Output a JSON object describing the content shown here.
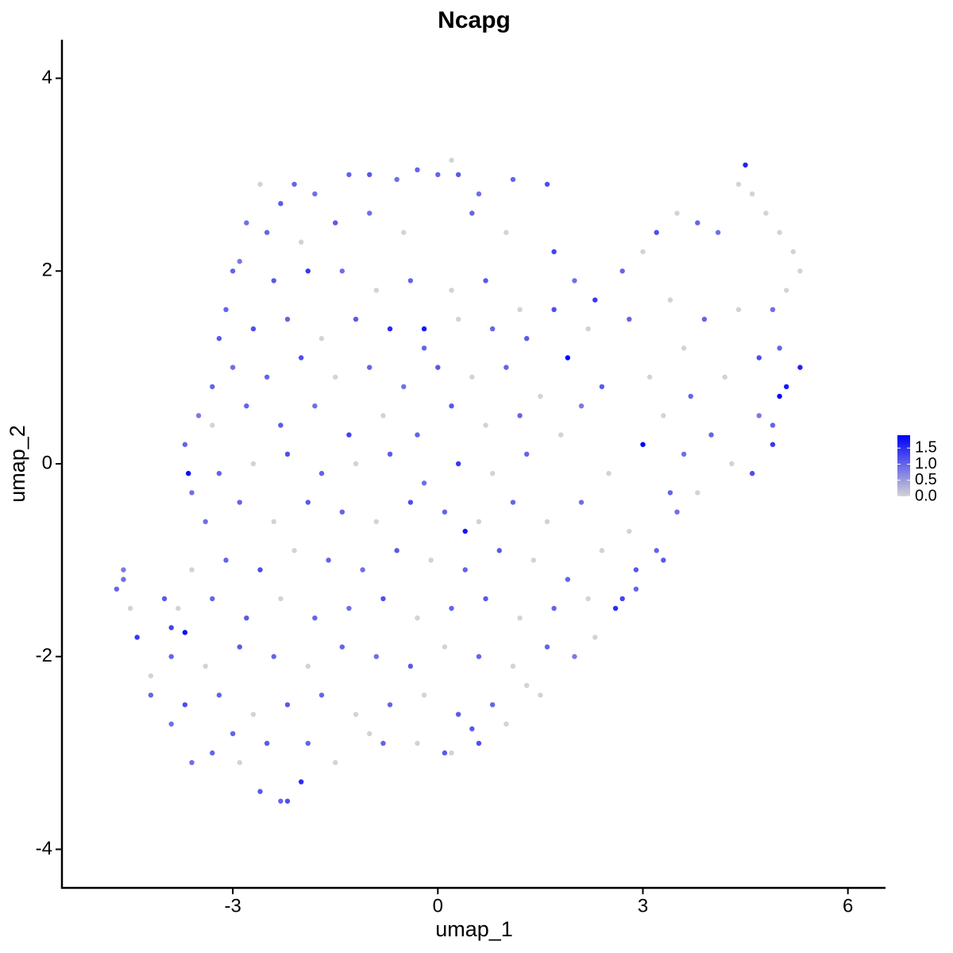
{
  "chart_data": {
    "type": "scatter",
    "title": "Ncapg",
    "x_label": "umap_1",
    "y_label": "umap_2",
    "xlim": [
      -5.5,
      6.55
    ],
    "ylim": [
      -4.4,
      4.4
    ],
    "xticks": [
      -3,
      0,
      3,
      6
    ],
    "yticks": [
      -4,
      -2,
      0,
      2,
      4
    ],
    "colorlim": [
      0,
      1.9
    ],
    "colorbar_ticks": [
      {
        "value": 0,
        "label": "0.0"
      },
      0.5,
      {
        "value": 1,
        "label": "1.0"
      },
      1.5
    ],
    "low_color": "#d3d3d3",
    "high_color": "#0000ff",
    "x": [
      -4.7,
      -4.6,
      -4.6,
      -4.5,
      -4.4,
      -4.2,
      -4.0,
      -3.9,
      -3.7,
      -3.65,
      -3.7,
      -3.6,
      -3.5,
      -3.3,
      -3.2,
      -3.0,
      -2.8,
      -2.6,
      -2.3,
      -2.1,
      -1.8,
      -1.3,
      -1.0,
      -0.6,
      -0.3,
      0,
      0.2,
      0.3,
      0.6,
      1.1,
      1.6,
      1.7,
      2.0,
      2.3,
      2.7,
      3.0,
      3.2,
      3.5,
      3.8,
      4.1,
      4.4,
      4.5,
      4.6,
      4.8,
      5.0,
      5.2,
      5.3,
      5.1,
      4.9,
      5.0,
      5.3,
      5.1,
      5.0,
      4.9,
      4.9,
      4.7,
      4.3,
      4.6,
      3.8,
      3.5,
      3.2,
      2.9,
      2.7,
      2.6,
      2.3,
      2.0,
      1.5,
      1.0,
      0.6,
      0.2,
      0.1,
      -0.3,
      -0.8,
      -1.5,
      -1.9,
      -2.0,
      -2.2,
      -2.3,
      -2.6,
      -2.9,
      -3.3,
      -3.6,
      -3.9,
      -4.2,
      1.9,
      3.0,
      -0.2,
      0.4,
      -2.5,
      -2.0,
      -1.5,
      -1.0,
      -0.5,
      0.5,
      1.0,
      -2.9,
      -2.4,
      -1.9,
      -1.4,
      -0.9,
      -0.4,
      0.2,
      0.7,
      1.2,
      1.7,
      -3.1,
      -2.7,
      -2.2,
      -1.7,
      -1.2,
      -0.7,
      -0.2,
      0.3,
      0.8,
      1.3,
      2.2,
      2.8,
      3.4,
      3.9,
      4.4,
      3.6,
      -3.0,
      -2.5,
      -2.0,
      -1.5,
      -1.0,
      -0.5,
      0,
      0.5,
      1.0,
      1.5,
      2.4,
      3.1,
      3.7,
      4.2,
      4.7,
      -3.3,
      -2.8,
      -2.3,
      -1.8,
      -1.3,
      -0.8,
      -0.3,
      0.2,
      0.7,
      1.2,
      1.8,
      2.1,
      3.3,
      4.0,
      -3.2,
      -2.7,
      -2.2,
      -1.7,
      -1.2,
      -0.7,
      -0.2,
      0.3,
      0.8,
      1.3,
      2.5,
      3.6,
      -3.4,
      -2.9,
      -2.4,
      -1.9,
      -1.4,
      -0.9,
      -0.4,
      0.1,
      0.6,
      1.1,
      1.6,
      2.1,
      2.8,
      3.4,
      -3.6,
      -3.1,
      -2.6,
      -2.1,
      -1.6,
      -1.1,
      -0.6,
      -0.1,
      0.4,
      0.9,
      1.4,
      1.9,
      2.4,
      3.3,
      -3.8,
      -3.3,
      -2.8,
      -2.3,
      -1.8,
      -1.3,
      -0.8,
      -0.3,
      0.2,
      0.7,
      1.2,
      1.7,
      2.2,
      2.9,
      -3.9,
      -3.4,
      -2.9,
      -2.4,
      -1.9,
      -1.4,
      -0.9,
      -0.4,
      0.1,
      0.6,
      1.1,
      1.6,
      -3.7,
      -3.2,
      -2.7,
      -2.2,
      -1.7,
      -1.2,
      -0.7,
      -0.2,
      0.3,
      0.8,
      1.3,
      -3.0,
      -2.5,
      -1.0,
      0.5
    ],
    "y": [
      -1.3,
      -1.2,
      -1.1,
      -1.5,
      -1.8,
      -2.2,
      -1.4,
      -1.7,
      -1.75,
      -0.1,
      0.2,
      -0.3,
      0.5,
      0.8,
      1.3,
      2.0,
      2.5,
      2.9,
      2.7,
      2.9,
      2.8,
      3.0,
      3.0,
      2.95,
      3.05,
      3.0,
      3.15,
      3.0,
      2.8,
      2.95,
      2.9,
      2.2,
      1.9,
      1.7,
      2.0,
      2.2,
      2.4,
      2.6,
      2.5,
      2.4,
      2.9,
      3.1,
      2.8,
      2.6,
      2.4,
      2.2,
      2.0,
      1.8,
      1.6,
      1.2,
      1.0,
      0.8,
      0.7,
      0.4,
      0.2,
      0.5,
      0,
      -0.1,
      -0.3,
      -0.5,
      -0.9,
      -1.1,
      -1.4,
      -1.5,
      -1.8,
      -2.0,
      -2.4,
      -2.7,
      -2.9,
      -3.0,
      -3.0,
      -2.9,
      -2.9,
      -3.1,
      -2.9,
      -3.3,
      -3.5,
      -3.5,
      -3.4,
      -3.1,
      -3.0,
      -3.1,
      -2.7,
      -2.4,
      1.1,
      0.2,
      1.4,
      -0.7,
      2.4,
      2.3,
      2.5,
      2.6,
      2.4,
      2.6,
      2.4,
      2.1,
      1.9,
      2.0,
      2.0,
      1.8,
      1.9,
      1.8,
      1.9,
      1.6,
      1.6,
      1.6,
      1.4,
      1.5,
      1.3,
      1.5,
      1.4,
      1.2,
      1.5,
      1.4,
      1.3,
      1.4,
      1.5,
      1.7,
      1.5,
      1.6,
      1.2,
      1.0,
      0.9,
      1.1,
      0.9,
      1.0,
      0.8,
      1.0,
      0.9,
      1.0,
      0.7,
      0.8,
      0.9,
      0.7,
      0.9,
      1.1,
      0.4,
      0.6,
      0.4,
      0.6,
      0.3,
      0.5,
      0.3,
      0.6,
      0.4,
      0.5,
      0.3,
      0.6,
      0.5,
      0.3,
      -0.1,
      0,
      0.1,
      -0.1,
      0,
      0.1,
      -0.2,
      0,
      -0.1,
      0.1,
      -0.1,
      0.1,
      -0.6,
      -0.4,
      -0.6,
      -0.4,
      -0.5,
      -0.6,
      -0.4,
      -0.5,
      -0.6,
      -0.4,
      -0.6,
      -0.4,
      -0.7,
      -0.3,
      -1.1,
      -1.0,
      -1.1,
      -0.9,
      -1.0,
      -1.1,
      -0.9,
      -1.0,
      -1.1,
      -0.9,
      -1.0,
      -1.2,
      -0.9,
      -1.0,
      -1.5,
      -1.4,
      -1.6,
      -1.4,
      -1.6,
      -1.5,
      -1.4,
      -1.6,
      -1.5,
      -1.4,
      -1.6,
      -1.5,
      -1.4,
      -1.3,
      -2.0,
      -2.1,
      -1.9,
      -2.0,
      -2.1,
      -1.9,
      -2.0,
      -2.1,
      -1.9,
      -2.0,
      -2.1,
      -1.9,
      -2.5,
      -2.4,
      -2.6,
      -2.5,
      -2.4,
      -2.6,
      -2.5,
      -2.4,
      -2.6,
      -2.5,
      -2.3,
      -2.8,
      -2.9,
      -2.8,
      -2.75
    ],
    "values": [
      1.0,
      0.9,
      0.8,
      0,
      1.4,
      0,
      1.1,
      1.3,
      1.8,
      1.8,
      1.0,
      0.9,
      0.8,
      1.0,
      1.1,
      1.0,
      0.9,
      0,
      1.1,
      1.0,
      0.9,
      1.0,
      1.1,
      0.9,
      1.0,
      1.0,
      0,
      1.1,
      0.9,
      1.0,
      1.2,
      1.3,
      0.9,
      1.4,
      1.0,
      0,
      1.2,
      0,
      1.0,
      0.9,
      0,
      1.6,
      0,
      0,
      0,
      0,
      0,
      0,
      0.9,
      1.0,
      1.6,
      1.7,
      1.9,
      1.0,
      1.4,
      0.8,
      0,
      1.2,
      0,
      0.9,
      1.0,
      1.1,
      1.3,
      1.5,
      0,
      0.8,
      0,
      0,
      1.2,
      0,
      1.1,
      0,
      1.0,
      0,
      1.0,
      1.5,
      1.2,
      1.0,
      1.1,
      0,
      1.0,
      0.9,
      0.9,
      1.0,
      1.9,
      1.9,
      1.7,
      1.7,
      1.0,
      0,
      1.1,
      0.9,
      0,
      1.0,
      0,
      0.8,
      1.1,
      1.4,
      0.9,
      0,
      1.0,
      0,
      1.1,
      0,
      1.2,
      1.0,
      1.2,
      1.0,
      0,
      1.1,
      1.5,
      1.0,
      0,
      1.0,
      1.1,
      0,
      1.0,
      0,
      1.0,
      0,
      0,
      0.9,
      1.0,
      1.2,
      0,
      1.0,
      0.9,
      1.1,
      0,
      1.0,
      0,
      1.1,
      0,
      1.0,
      0,
      1.2,
      0,
      1.0,
      1.1,
      0.9,
      1.3,
      0,
      1.0,
      1.1,
      0,
      1.0,
      0,
      0.8,
      0,
      1.0,
      1.0,
      0,
      1.2,
      1.0,
      0,
      1.1,
      0.9,
      1.4,
      0,
      1.0,
      0,
      0.9,
      0.9,
      1.0,
      0,
      1.1,
      1.0,
      0,
      1.2,
      1.0,
      0,
      1.0,
      0,
      0.9,
      0,
      1.0,
      0,
      1.0,
      1.2,
      0,
      1.0,
      0.9,
      1.1,
      0,
      1.0,
      1.1,
      0,
      1.0,
      0,
      1.1,
      0,
      1.0,
      1.1,
      0,
      1.0,
      0.9,
      1.2,
      0,
      1.0,
      1.1,
      0,
      1.0,
      0,
      1.0,
      1.0,
      0,
      1.1,
      1.0,
      0,
      1.0,
      0.9,
      1.1,
      0,
      1.0,
      0,
      1.0,
      1.2,
      1.0,
      0,
      1.1,
      1.0,
      0,
      1.0,
      0,
      1.1,
      1.0,
      0,
      1.0,
      1.1,
      0,
      1.1
    ]
  }
}
